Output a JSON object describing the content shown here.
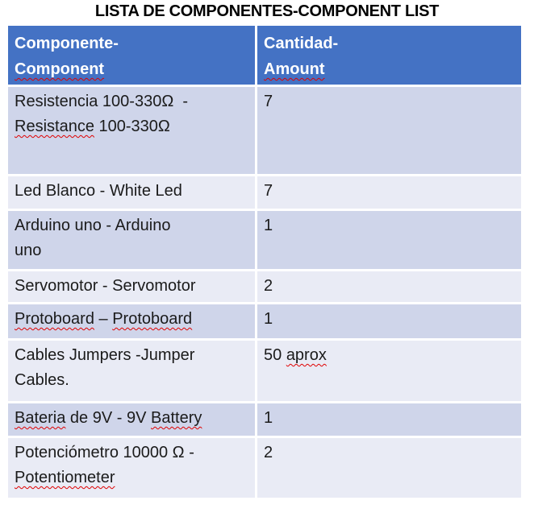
{
  "page": {
    "title": "LISTA DE COMPONENTES-COMPONENT LIST"
  },
  "colors": {
    "header_bg": "#4472C4",
    "header_text": "#FFFFFF",
    "row_dark": "#CFD5EA",
    "row_light": "#E9EBF5",
    "body_text": "#1B1B1B",
    "squiggle": "#E00000"
  },
  "table": {
    "columns": [
      {
        "name": "componente",
        "lines": [
          [
            {
              "t": "Componente-",
              "m": false
            }
          ],
          [
            {
              "t": "Component",
              "m": true
            }
          ]
        ]
      },
      {
        "name": "cantidad",
        "lines": [
          [
            {
              "t": "Cantidad-",
              "m": false
            }
          ],
          [
            {
              "t": "Amount",
              "m": true
            }
          ]
        ]
      }
    ],
    "rows": [
      {
        "component": [
          [
            {
              "t": "Resistencia 100-330Ω  -",
              "m": false
            }
          ],
          [
            {
              "t": "Resistance",
              "m": true
            },
            {
              "t": " 100-330Ω",
              "m": false
            }
          ]
        ],
        "amount": [
          [
            {
              "t": "7",
              "m": false
            }
          ]
        ]
      },
      {
        "component": [
          [
            {
              "t": "Led Blanco - White Led",
              "m": false
            }
          ]
        ],
        "amount": [
          [
            {
              "t": "7",
              "m": false
            }
          ]
        ]
      },
      {
        "component": [
          [
            {
              "t": "Arduino uno - Arduino",
              "m": false
            }
          ],
          [
            {
              "t": "uno",
              "m": false
            }
          ]
        ],
        "amount": [
          [
            {
              "t": "1",
              "m": false
            }
          ]
        ]
      },
      {
        "component": [
          [
            {
              "t": "Servomotor - Servomotor",
              "m": false
            }
          ]
        ],
        "amount": [
          [
            {
              "t": "2",
              "m": false
            }
          ]
        ]
      },
      {
        "component": [
          [
            {
              "t": "Protoboard",
              "m": true
            },
            {
              "t": " – ",
              "m": false
            },
            {
              "t": "Protoboard",
              "m": true
            }
          ]
        ],
        "amount": [
          [
            {
              "t": "1",
              "m": false
            }
          ]
        ]
      },
      {
        "component": [
          [
            {
              "t": "Cables Jumpers -Jumper",
              "m": false
            }
          ],
          [
            {
              "t": "Cables.",
              "m": false
            }
          ]
        ],
        "amount": [
          [
            {
              "t": "50 ",
              "m": false
            },
            {
              "t": "aprox",
              "m": true
            }
          ]
        ]
      },
      {
        "component": [
          [
            {
              "t": "Bateria",
              "m": true
            },
            {
              "t": " de 9V - 9V ",
              "m": false
            },
            {
              "t": "Battery",
              "m": true
            }
          ]
        ],
        "amount": [
          [
            {
              "t": "1",
              "m": false
            }
          ]
        ]
      },
      {
        "component": [
          [
            {
              "t": "Potenciómetro 10000 Ω -",
              "m": false
            }
          ],
          [
            {
              "t": "Potentiometer",
              "m": true
            }
          ]
        ],
        "amount": [
          [
            {
              "t": "2",
              "m": false
            }
          ]
        ]
      }
    ]
  }
}
